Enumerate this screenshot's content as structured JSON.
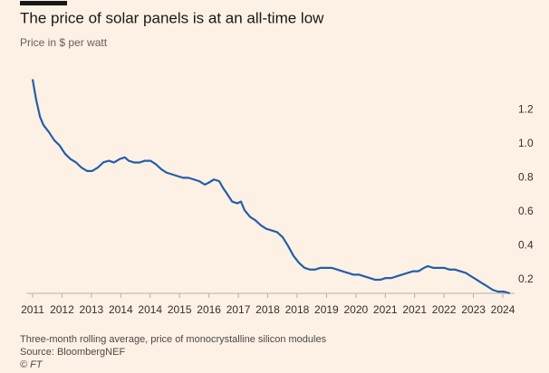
{
  "chart_data": {
    "type": "line",
    "title": "The price of solar panels is at an all-time low",
    "subtitle": "Price in $ per watt",
    "caption": "Three-month rolling average, price of monocrystalline silicon modules",
    "source": "Source: BloombergNEF",
    "credit": "© FT",
    "color": "#245ea8",
    "x": [
      0,
      0.12,
      0.25,
      0.37,
      0.55,
      0.74,
      0.92,
      1.11,
      1.29,
      1.48,
      1.66,
      1.85,
      2.03,
      2.22,
      2.4,
      2.59,
      2.77,
      2.96,
      3.14,
      3.27,
      3.45,
      3.64,
      3.82,
      4.01,
      4.19,
      4.38,
      4.56,
      4.75,
      4.93,
      5.12,
      5.3,
      5.49,
      5.67,
      5.86,
      5.98,
      6.17,
      6.35,
      6.48,
      6.6,
      6.79,
      6.97,
      7.09,
      7.21,
      7.4,
      7.58,
      7.77,
      7.95,
      8.14,
      8.32,
      8.51,
      8.69,
      8.88,
      9.06,
      9.25,
      9.43,
      9.62,
      9.8,
      9.99,
      10.17,
      10.36,
      10.54,
      10.73,
      10.91,
      11.1,
      11.28,
      11.47,
      11.65,
      11.84,
      12.02,
      12.21,
      12.39,
      12.58,
      12.76,
      12.95,
      13.13,
      13.32,
      13.44,
      13.63,
      13.81,
      14,
      14.18,
      14.37,
      14.55,
      14.74,
      14.92,
      15.11,
      15.29,
      15.48,
      15.66,
      15.84,
      16.03,
      16.24
    ],
    "values": [
      1.38,
      1.26,
      1.16,
      1.11,
      1.07,
      1.02,
      0.99,
      0.94,
      0.91,
      0.89,
      0.86,
      0.84,
      0.84,
      0.86,
      0.89,
      0.9,
      0.89,
      0.91,
      0.92,
      0.9,
      0.89,
      0.89,
      0.9,
      0.9,
      0.88,
      0.85,
      0.83,
      0.82,
      0.81,
      0.8,
      0.8,
      0.79,
      0.78,
      0.76,
      0.77,
      0.79,
      0.78,
      0.74,
      0.71,
      0.66,
      0.65,
      0.66,
      0.61,
      0.57,
      0.55,
      0.52,
      0.5,
      0.49,
      0.48,
      0.45,
      0.4,
      0.34,
      0.3,
      0.27,
      0.26,
      0.26,
      0.27,
      0.27,
      0.27,
      0.26,
      0.25,
      0.24,
      0.23,
      0.23,
      0.22,
      0.21,
      0.2,
      0.2,
      0.21,
      0.21,
      0.22,
      0.23,
      0.24,
      0.25,
      0.25,
      0.27,
      0.28,
      0.27,
      0.27,
      0.27,
      0.26,
      0.26,
      0.25,
      0.24,
      0.22,
      0.2,
      0.18,
      0.16,
      0.14,
      0.13,
      0.13,
      0.12
    ],
    "xlim": [
      -0.2,
      16.4
    ],
    "xticks": [
      {
        "value": 0,
        "label": "2011"
      },
      {
        "value": 1,
        "label": "2012"
      },
      {
        "value": 2,
        "label": "2013"
      },
      {
        "value": 3,
        "label": "2014"
      },
      {
        "value": 4,
        "label": "2014"
      },
      {
        "value": 5,
        "label": "2015"
      },
      {
        "value": 6,
        "label": "2016"
      },
      {
        "value": 7,
        "label": "2017"
      },
      {
        "value": 8,
        "label": "2018"
      },
      {
        "value": 9,
        "label": "2018"
      },
      {
        "value": 10,
        "label": "2019"
      },
      {
        "value": 11,
        "label": "2020"
      },
      {
        "value": 12,
        "label": "2021"
      },
      {
        "value": 13,
        "label": "2021"
      },
      {
        "value": 14,
        "label": "2022"
      },
      {
        "value": 15,
        "label": "2023"
      },
      {
        "value": 16,
        "label": "2024"
      }
    ],
    "ylim": [
      0.12,
      1.42
    ],
    "yticks": [
      0.2,
      0.4,
      0.6,
      0.8,
      {
        "value": 1,
        "label": "1.0"
      },
      1.2
    ]
  }
}
